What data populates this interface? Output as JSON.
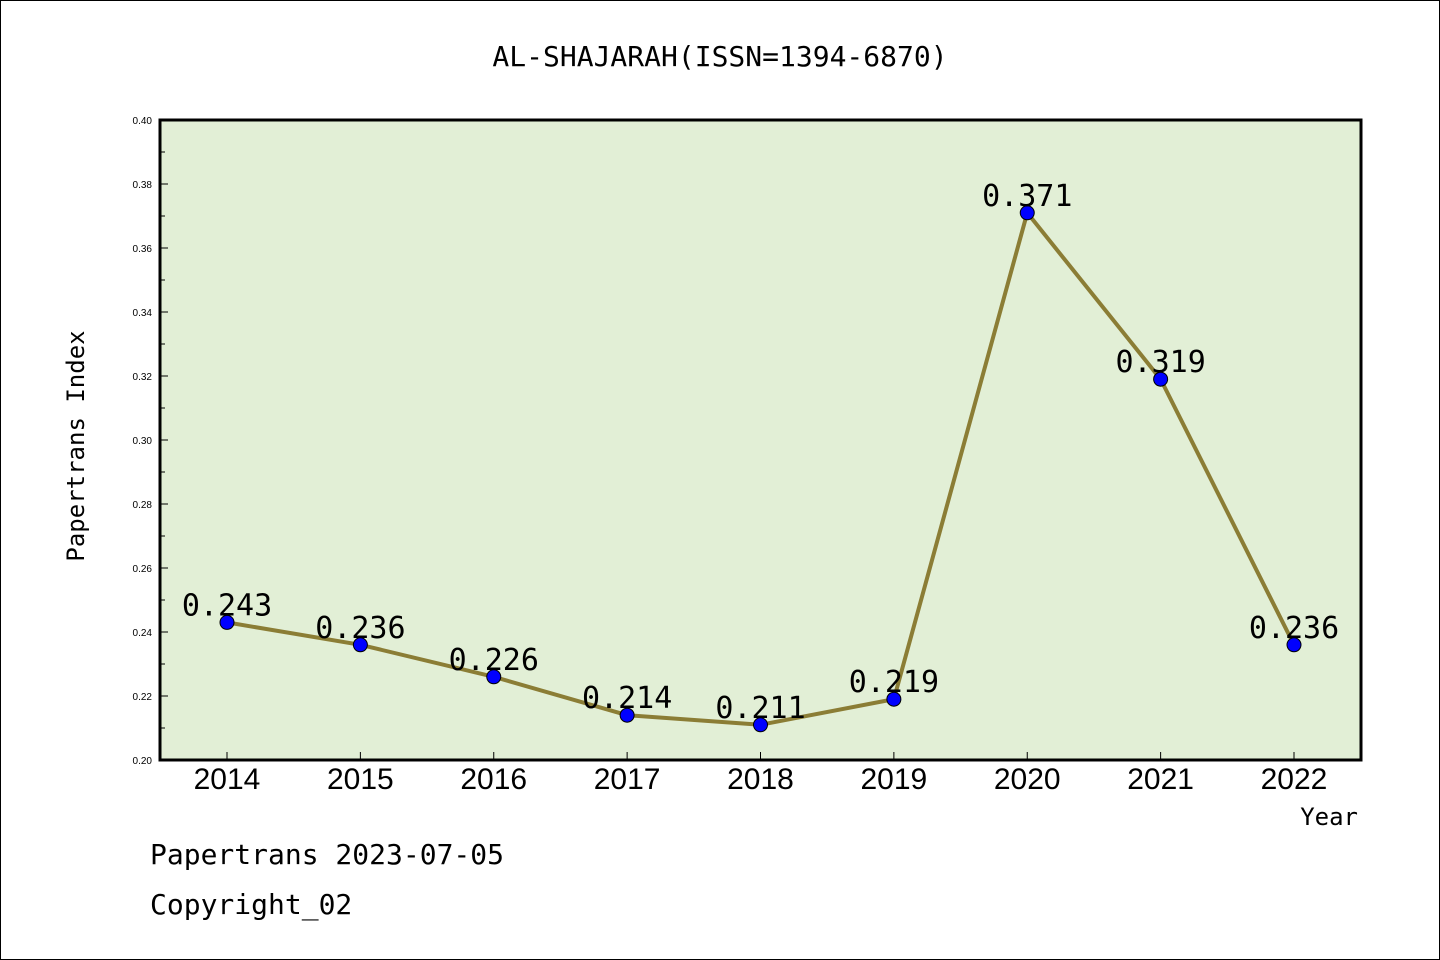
{
  "chart_data": {
    "type": "line",
    "title": "AL-SHAJARAH(ISSN=1394-6870)",
    "xlabel": "Year",
    "ylabel": "Papertrans Index",
    "categories": [
      "2014",
      "2015",
      "2016",
      "2017",
      "2018",
      "2019",
      "2020",
      "2021",
      "2022"
    ],
    "series": [
      {
        "values": [
          0.243,
          0.236,
          0.226,
          0.214,
          0.211,
          0.219,
          0.371,
          0.319,
          0.236
        ]
      }
    ],
    "data_labels": [
      "0.243",
      "0.236",
      "0.226",
      "0.214",
      "0.211",
      "0.219",
      "0.371",
      "0.319",
      "0.236"
    ],
    "ylim": [
      0.2,
      0.4
    ],
    "yticks": [
      "0.20",
      "0.22",
      "0.24",
      "0.26",
      "0.28",
      "0.30",
      "0.32",
      "0.34",
      "0.36",
      "0.38",
      "0.40"
    ],
    "grid": false,
    "legend": "none",
    "colors": {
      "plot_bg": "#e2efd6",
      "line": "#8b7d35",
      "marker": "#0000ff"
    }
  },
  "footer": {
    "line1": "Papertrans 2023-07-05",
    "line2": "Copyright_02"
  }
}
